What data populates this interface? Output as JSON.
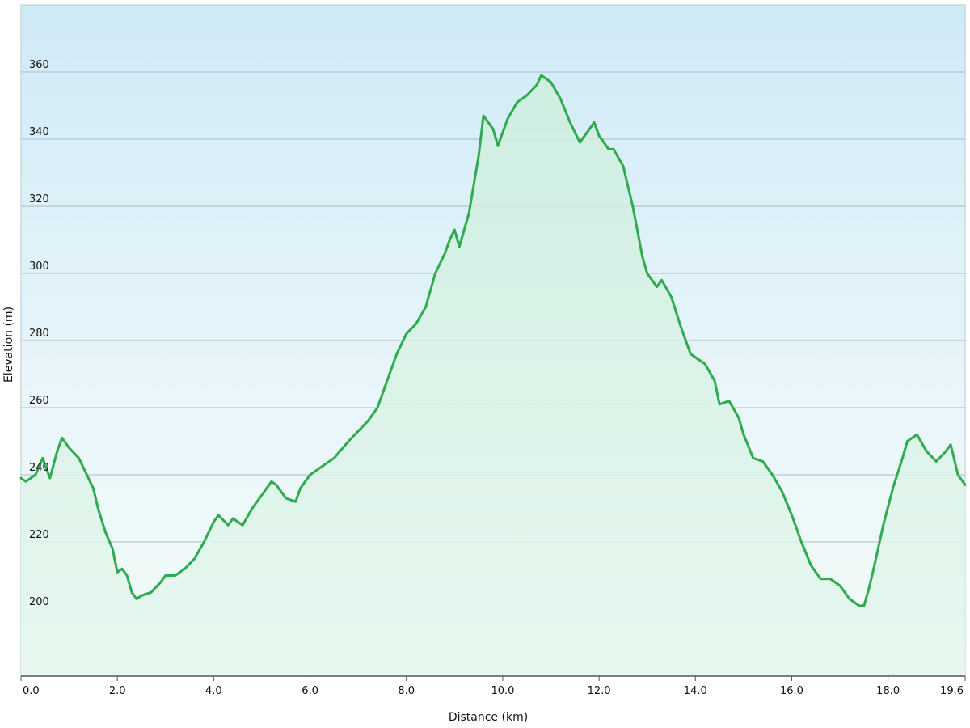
{
  "chart_data": {
    "type": "area",
    "title": "",
    "xlabel": "Distance  (km)",
    "ylabel": "Elevation (m)",
    "xlim": [
      0,
      19.6
    ],
    "ylim": [
      180,
      380
    ],
    "grid": true,
    "x_ticks": [
      {
        "value": 0,
        "label": "0.0"
      },
      {
        "value": 2,
        "label": "2.0"
      },
      {
        "value": 4,
        "label": "4.0"
      },
      {
        "value": 6,
        "label": "6.0"
      },
      {
        "value": 8,
        "label": "8.0"
      },
      {
        "value": 10,
        "label": "10.0"
      },
      {
        "value": 12,
        "label": "12.0"
      },
      {
        "value": 14,
        "label": "14.0"
      },
      {
        "value": 16,
        "label": "16.0"
      },
      {
        "value": 18,
        "label": "18.0"
      },
      {
        "value": 19.6,
        "label": "19.6"
      }
    ],
    "y_ticks": [
      {
        "value": 200,
        "label": "200"
      },
      {
        "value": 220,
        "label": "220"
      },
      {
        "value": 240,
        "label": "240"
      },
      {
        "value": 260,
        "label": "260"
      },
      {
        "value": 280,
        "label": "280"
      },
      {
        "value": 300,
        "label": "300"
      },
      {
        "value": 320,
        "label": "320"
      },
      {
        "value": 340,
        "label": "340"
      },
      {
        "value": 360,
        "label": "360"
      }
    ],
    "series": [
      {
        "line_color": "#2eaa4f",
        "x": [
          0,
          0.1,
          0.3,
          0.45,
          0.6,
          0.75,
          0.85,
          1.0,
          1.2,
          1.3,
          1.5,
          1.6,
          1.75,
          1.9,
          2.0,
          2.1,
          2.2,
          2.3,
          2.4,
          2.5,
          2.7,
          2.9,
          3.0,
          3.2,
          3.4,
          3.6,
          3.8,
          4.0,
          4.1,
          4.3,
          4.4,
          4.6,
          4.8,
          5.0,
          5.2,
          5.3,
          5.5,
          5.7,
          5.8,
          6.0,
          6.2,
          6.5,
          6.8,
          7.0,
          7.2,
          7.4,
          7.6,
          7.8,
          8.0,
          8.2,
          8.4,
          8.6,
          8.8,
          8.9,
          9.0,
          9.1,
          9.3,
          9.5,
          9.6,
          9.8,
          9.9,
          10.1,
          10.3,
          10.5,
          10.7,
          10.8,
          11.0,
          11.2,
          11.4,
          11.6,
          11.8,
          11.9,
          12.0,
          12.2,
          12.3,
          12.5,
          12.7,
          12.9,
          13.0,
          13.2,
          13.3,
          13.5,
          13.7,
          13.9,
          14.1,
          14.2,
          14.4,
          14.5,
          14.7,
          14.9,
          15.0,
          15.2,
          15.4,
          15.6,
          15.8,
          16.0,
          16.2,
          16.4,
          16.6,
          16.8,
          17.0,
          17.2,
          17.4,
          17.5,
          17.6,
          17.7,
          17.9,
          18.1,
          18.3,
          18.4,
          18.6,
          18.8,
          19.0,
          19.2,
          19.3,
          19.45,
          19.6
        ],
        "y": [
          239,
          238,
          240,
          245,
          239,
          247,
          251,
          248,
          245,
          242,
          236,
          230,
          223,
          218,
          211,
          212,
          210,
          205,
          203,
          204,
          205,
          208,
          210,
          210,
          212,
          215,
          220,
          226,
          228,
          225,
          227,
          225,
          230,
          234,
          238,
          237,
          233,
          232,
          236,
          240,
          242,
          245,
          250,
          253,
          256,
          260,
          268,
          276,
          282,
          285,
          290,
          300,
          306,
          310,
          313,
          308,
          318,
          335,
          347,
          343,
          338,
          346,
          351,
          353,
          356,
          359,
          357,
          352,
          345,
          339,
          343,
          345,
          341,
          337,
          337,
          332,
          320,
          305,
          300,
          296,
          298,
          293,
          284,
          276,
          274,
          273,
          268,
          261,
          262,
          257,
          252,
          245,
          244,
          240,
          235,
          228,
          220,
          213,
          209,
          209,
          207,
          203,
          201,
          201,
          206,
          212,
          225,
          236,
          245,
          250,
          252,
          247,
          244,
          247,
          249,
          240,
          237
        ]
      }
    ]
  }
}
